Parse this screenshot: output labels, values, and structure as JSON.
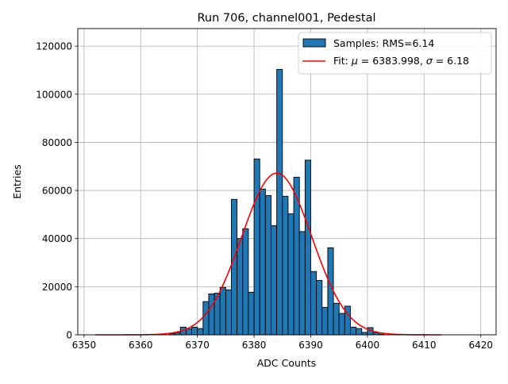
{
  "chart_data": {
    "type": "bar",
    "title": "Run 706, channel001, Pedestal",
    "xlabel": "ADC Counts",
    "ylabel": "Entries",
    "xlim": [
      6348.9,
      6422.7
    ],
    "ylim": [
      0,
      127300
    ],
    "grid": true,
    "legend_placement": "top-right",
    "xticks": [
      6350,
      6360,
      6370,
      6380,
      6390,
      6400,
      6410,
      6420
    ],
    "yticks": [
      0,
      20000,
      40000,
      60000,
      80000,
      100000,
      120000
    ],
    "bin_width": 1,
    "bins": [
      6365,
      6366,
      6367,
      6368,
      6369,
      6370,
      6371,
      6372,
      6373,
      6374,
      6375,
      6376,
      6377,
      6378,
      6379,
      6380,
      6381,
      6382,
      6383,
      6384,
      6385,
      6386,
      6387,
      6388,
      6389,
      6390,
      6391,
      6392,
      6393,
      6394,
      6395,
      6396,
      6397,
      6398,
      6399,
      6400,
      6401,
      6402
    ],
    "values": [
      500,
      900,
      3200,
      2500,
      3200,
      2600,
      13800,
      17000,
      17300,
      19700,
      18700,
      56300,
      40000,
      44100,
      17700,
      73100,
      60600,
      57900,
      45400,
      110300,
      57600,
      50300,
      65500,
      42900,
      72600,
      26300,
      22600,
      11400,
      36200,
      13100,
      8900,
      11900,
      3200,
      2600,
      1000,
      3000,
      900,
      300
    ],
    "series": [
      {
        "name": "Samples: RMS=6.14",
        "kind": "histogram",
        "color": "#1f77b4"
      },
      {
        "name": "Fit: μ = 6383.998, σ = 6.18",
        "kind": "gaussian-fit",
        "color": "#ff0000",
        "mu": 6383.998,
        "sigma": 6.18,
        "peak": 67200,
        "x_range": [
          6352,
          6413
        ]
      }
    ],
    "legend": {
      "samples_prefix": "Samples: RMS=6.14",
      "fit_prefix": "Fit: ",
      "fit_mu": "μ",
      "fit_mid": " = 6383.998, ",
      "fit_sigma": "σ",
      "fit_end": " = 6.18"
    }
  }
}
